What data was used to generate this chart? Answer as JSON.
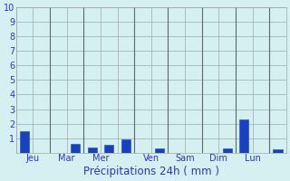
{
  "values": [
    1.45,
    0,
    0,
    0.6,
    0.35,
    0.55,
    0.9,
    0,
    0.3,
    0,
    0,
    0,
    0.3,
    2.3,
    0,
    0.25
  ],
  "day_labels": [
    "Jeu",
    "Mar",
    "Mer",
    "Ven",
    "Sam",
    "Dim",
    "Lun"
  ],
  "day_positions": [
    0.5,
    2.5,
    4.5,
    7.5,
    9.5,
    11.5,
    13.5
  ],
  "separator_positions": [
    1.5,
    3.5,
    6.5,
    8.5,
    10.5,
    12.5,
    14.5
  ],
  "bar_color": "#1a3fbf",
  "bar_edge_color": "#2255dd",
  "xlabel": "Précipitations 24h ( mm )",
  "ylim": [
    0,
    10
  ],
  "yticks": [
    1,
    2,
    3,
    4,
    5,
    6,
    7,
    8,
    9,
    10
  ],
  "bg_color": "#d4f0f0",
  "grid_color": "#a0a8a8",
  "tick_color": "#3333cc",
  "xlabel_color": "#3333cc",
  "xlabel_fontsize": 8.5,
  "tick_fontsize": 7,
  "bar_width": 0.55
}
